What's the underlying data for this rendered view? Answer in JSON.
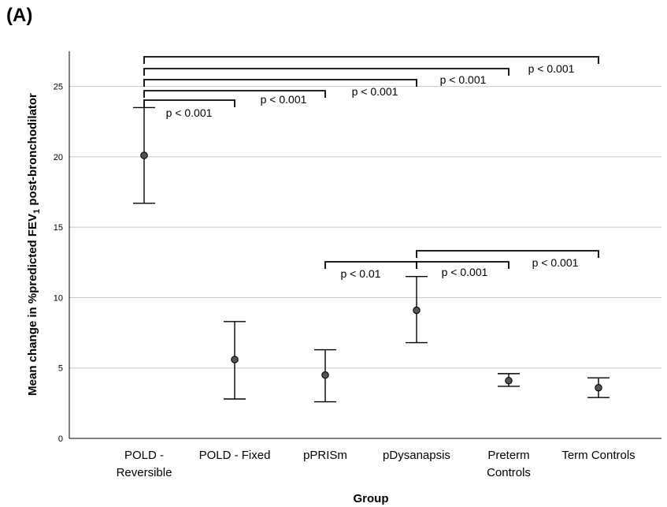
{
  "panel_label": "(A)",
  "chart_data": {
    "type": "errorbar",
    "xlabel": "Group",
    "ylabel_main": "Mean change in %predicted FEV",
    "ylabel_sub": "1",
    "ylabel_tail": " post-bronchodilator",
    "ylim": [
      0,
      27.5
    ],
    "yticks": [
      0,
      5,
      10,
      15,
      20,
      25
    ],
    "grid": "horizontal",
    "categories": [
      {
        "lines": [
          "POLD -",
          "Reversible"
        ]
      },
      {
        "lines": [
          "POLD - Fixed"
        ]
      },
      {
        "lines": [
          "pPRISm"
        ]
      },
      {
        "lines": [
          "pDysanapsis"
        ]
      },
      {
        "lines": [
          "Preterm",
          "Controls"
        ]
      },
      {
        "lines": [
          "Term Controls"
        ]
      }
    ],
    "points": [
      {
        "mean": 20.1,
        "low": 16.7,
        "high": 23.5
      },
      {
        "mean": 5.6,
        "low": 2.8,
        "high": 8.3
      },
      {
        "mean": 4.5,
        "low": 2.6,
        "high": 6.3
      },
      {
        "mean": 9.1,
        "low": 6.8,
        "high": 11.5
      },
      {
        "mean": 4.1,
        "low": 3.7,
        "high": 4.6
      },
      {
        "mean": 3.6,
        "low": 2.9,
        "high": 4.3
      }
    ],
    "annotations": [
      {
        "from": 0,
        "to": 1,
        "label": "p < 0.001"
      },
      {
        "from": 0,
        "to": 2,
        "label": "p < 0.001"
      },
      {
        "from": 0,
        "to": 3,
        "label": "p < 0.001"
      },
      {
        "from": 0,
        "to": 4,
        "label": "p < 0.001"
      },
      {
        "from": 0,
        "to": 5,
        "label": "p < 0.001"
      },
      {
        "from": 2,
        "to": 3,
        "label": "p < 0.01"
      },
      {
        "from": 3,
        "to": 4,
        "label": "p < 0.001"
      },
      {
        "from": 3,
        "to": 5,
        "label": "p < 0.001"
      }
    ]
  }
}
